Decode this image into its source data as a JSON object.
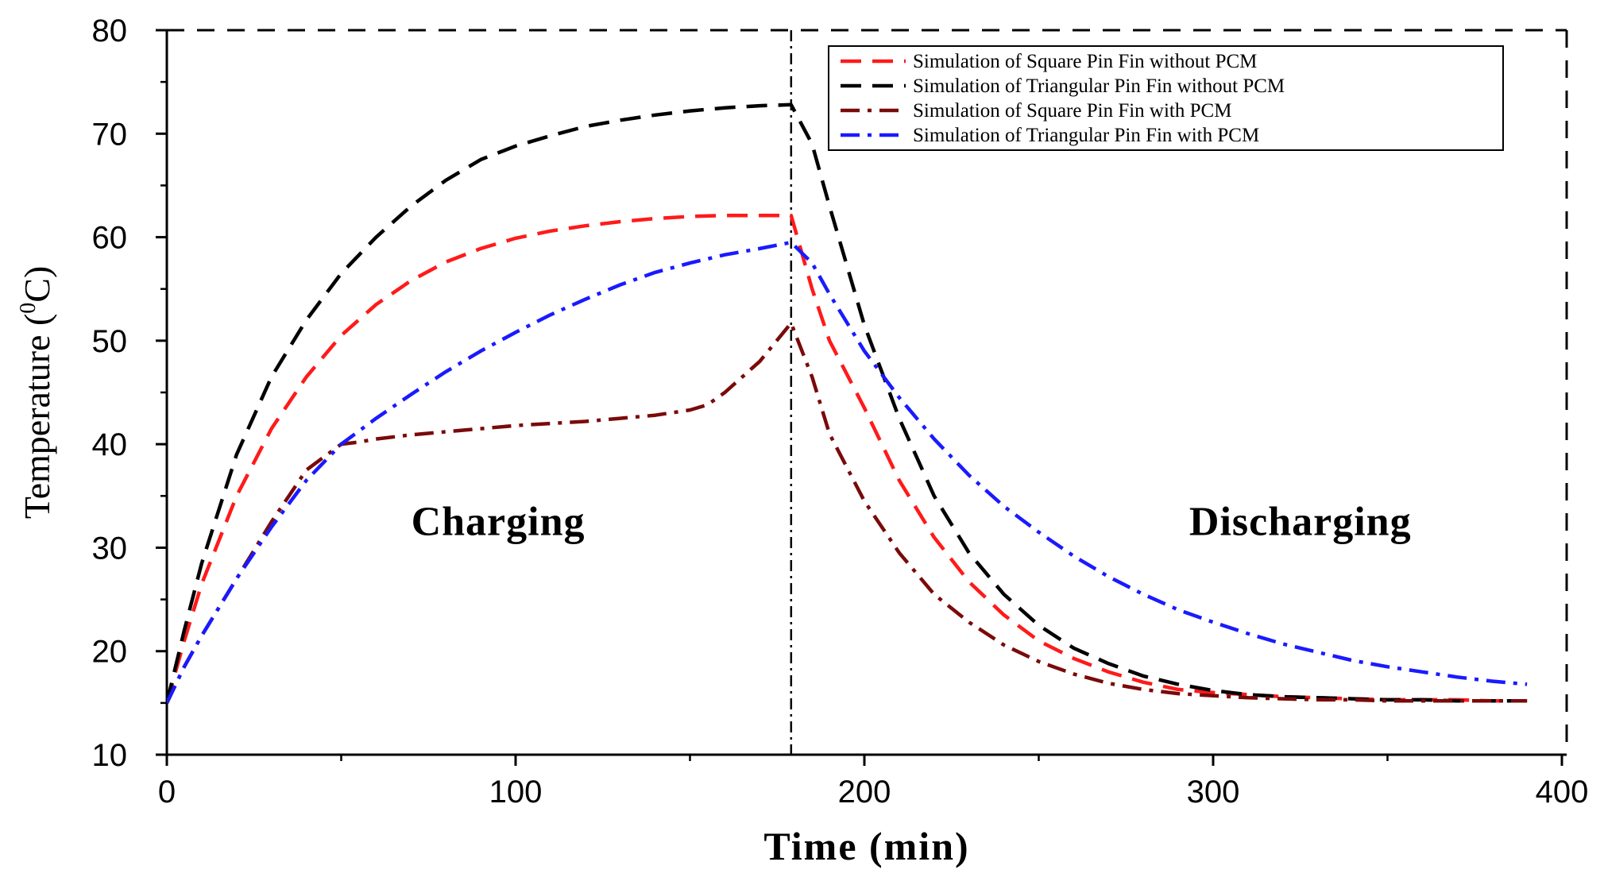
{
  "chart_data": {
    "type": "line",
    "title": "",
    "xlabel": "Time (min)",
    "ylabel": {
      "base": "Temperature (",
      "sup": "0",
      "unit": "C)"
    },
    "xlim": [
      0,
      400
    ],
    "ylim": [
      10,
      80
    ],
    "x_ticks": [
      0,
      100,
      200,
      300,
      400
    ],
    "y_ticks": [
      10,
      20,
      30,
      40,
      50,
      60,
      70,
      80
    ],
    "grid": false,
    "legend_position": "top-right",
    "divider_x": 179,
    "annotations": [
      {
        "text": "Charging",
        "x": 95,
        "y": 32
      },
      {
        "text": "Discharging",
        "x": 325,
        "y": 32
      }
    ],
    "series": [
      {
        "name": "Simulation of Square Pin Fin without PCM",
        "color": "#ff1a1a",
        "dash": "dashed",
        "x": [
          0,
          5,
          10,
          20,
          30,
          40,
          50,
          60,
          70,
          80,
          90,
          100,
          110,
          120,
          130,
          140,
          150,
          160,
          170,
          179,
          185,
          190,
          200,
          210,
          220,
          230,
          240,
          250,
          260,
          270,
          280,
          290,
          300,
          310,
          320,
          330,
          340,
          350,
          360,
          370,
          380,
          390
        ],
        "values": [
          15,
          21,
          26.5,
          35,
          41.5,
          46.5,
          50.5,
          53.5,
          55.8,
          57.6,
          58.9,
          59.9,
          60.6,
          61.1,
          61.5,
          61.8,
          62,
          62.1,
          62.1,
          62.1,
          55,
          50,
          43.5,
          36.5,
          31,
          26.7,
          23.5,
          21,
          19.3,
          18,
          17,
          16.3,
          16,
          15.8,
          15.6,
          15.5,
          15.4,
          15.3,
          15.3,
          15.3,
          15.2,
          15.2
        ]
      },
      {
        "name": "Simulation of Triangular Pin Fin without PCM",
        "color": "#000000",
        "dash": "dashed",
        "x": [
          0,
          5,
          10,
          20,
          30,
          40,
          50,
          60,
          70,
          80,
          90,
          100,
          110,
          120,
          130,
          140,
          150,
          160,
          170,
          179,
          185,
          190,
          200,
          210,
          220,
          230,
          240,
          250,
          260,
          270,
          280,
          290,
          300,
          310,
          320,
          330,
          340,
          350,
          360,
          370,
          380,
          390
        ],
        "values": [
          15,
          22,
          28.5,
          39,
          46.5,
          52,
          56.5,
          60,
          63,
          65.5,
          67.5,
          68.8,
          69.8,
          70.7,
          71.3,
          71.8,
          72.2,
          72.5,
          72.7,
          72.8,
          69,
          63,
          51.5,
          42.5,
          35,
          29.5,
          25.5,
          22.5,
          20.3,
          18.8,
          17.6,
          16.8,
          16.2,
          15.8,
          15.6,
          15.5,
          15.4,
          15.3,
          15.3,
          15.2,
          15.2,
          15.2
        ]
      },
      {
        "name": "Simulation of Square Pin Fin with PCM",
        "color": "#7a0a0a",
        "dash": "dashdot",
        "x": [
          0,
          5,
          10,
          20,
          30,
          40,
          50,
          55,
          60,
          70,
          80,
          90,
          100,
          110,
          120,
          130,
          140,
          150,
          155,
          160,
          170,
          179,
          185,
          190,
          200,
          210,
          220,
          230,
          240,
          250,
          260,
          270,
          280,
          290,
          300,
          310,
          320,
          330,
          340,
          350,
          360,
          370,
          380,
          390
        ],
        "values": [
          15,
          18.5,
          21.5,
          27,
          32.5,
          37.5,
          40,
          40.2,
          40.5,
          40.9,
          41.2,
          41.5,
          41.8,
          42,
          42.2,
          42.5,
          42.8,
          43.3,
          43.8,
          45,
          48,
          51.7,
          46.5,
          41,
          34.5,
          29.5,
          25.5,
          22.8,
          20.6,
          19,
          17.8,
          16.9,
          16.3,
          15.9,
          15.7,
          15.5,
          15.4,
          15.3,
          15.3,
          15.2,
          15.2,
          15.2,
          15.2,
          15.2
        ]
      },
      {
        "name": "Simulation of Triangular Pin Fin with PCM",
        "color": "#1a1aff",
        "dash": "dashdot",
        "x": [
          0,
          5,
          10,
          20,
          30,
          40,
          50,
          60,
          70,
          80,
          90,
          100,
          110,
          120,
          130,
          140,
          150,
          160,
          170,
          179,
          185,
          190,
          200,
          210,
          220,
          230,
          240,
          250,
          260,
          270,
          280,
          290,
          300,
          310,
          320,
          330,
          340,
          350,
          360,
          370,
          380,
          390
        ],
        "values": [
          15,
          18.5,
          21.5,
          27,
          32,
          36.5,
          40,
          42.5,
          44.8,
          47,
          49,
          50.8,
          52.5,
          54,
          55.4,
          56.6,
          57.5,
          58.3,
          58.9,
          59.5,
          57.5,
          54.5,
          49,
          44.5,
          40.5,
          37,
          34,
          31.5,
          29.2,
          27.2,
          25.5,
          24,
          22.8,
          21.7,
          20.7,
          19.9,
          19.1,
          18.5,
          18,
          17.5,
          17.1,
          16.8
        ]
      }
    ]
  }
}
